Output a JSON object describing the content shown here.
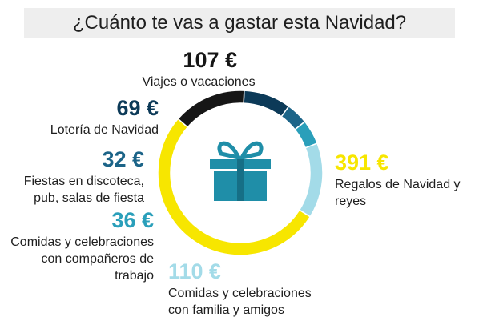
{
  "chart_data": {
    "type": "donut",
    "title": "¿Cuánto te vas a gastar esta Navidad?",
    "categories": [
      "Viajes o vacaciones",
      "Lotería de Navidad",
      "Fiestas en discoteca, pub, salas de fiesta",
      "Comidas y celebraciones con compañeros de trabajo",
      "Comidas y celebraciones con familia y amigos",
      "Regalos de Navidad y reyes"
    ],
    "values": [
      107,
      69,
      32,
      36,
      110,
      391
    ],
    "value_labels": [
      "107 €",
      "69 €",
      "32 €",
      "36 €",
      "110 €",
      "391 €"
    ],
    "colors": [
      "#161616",
      "#0c3a58",
      "#1c6488",
      "#2a9fba",
      "#a3dbe8",
      "#f7e600"
    ]
  }
}
